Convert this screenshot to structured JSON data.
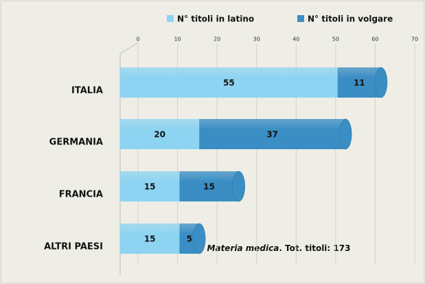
{
  "chart_data": {
    "type": "bar",
    "orientation": "horizontal",
    "stacked": true,
    "categories": [
      "ITALIA",
      "GERMANIA",
      "FRANCIA",
      "ALTRI PAESI"
    ],
    "series": [
      {
        "name": "N° titoli in latino",
        "color": "#8dd4f2",
        "values": [
          55,
          20,
          15,
          15
        ]
      },
      {
        "name": "N° titoli in volgare",
        "color": "#3a8ec4",
        "values": [
          11,
          37,
          15,
          5
        ]
      }
    ],
    "xlim": [
      0,
      70
    ],
    "xticks": [
      0,
      10,
      20,
      30,
      40,
      50,
      60,
      70
    ],
    "grid": true,
    "legend": "top",
    "annotation": [
      "Materia medica",
      ". Tot. titoli: 173"
    ]
  }
}
